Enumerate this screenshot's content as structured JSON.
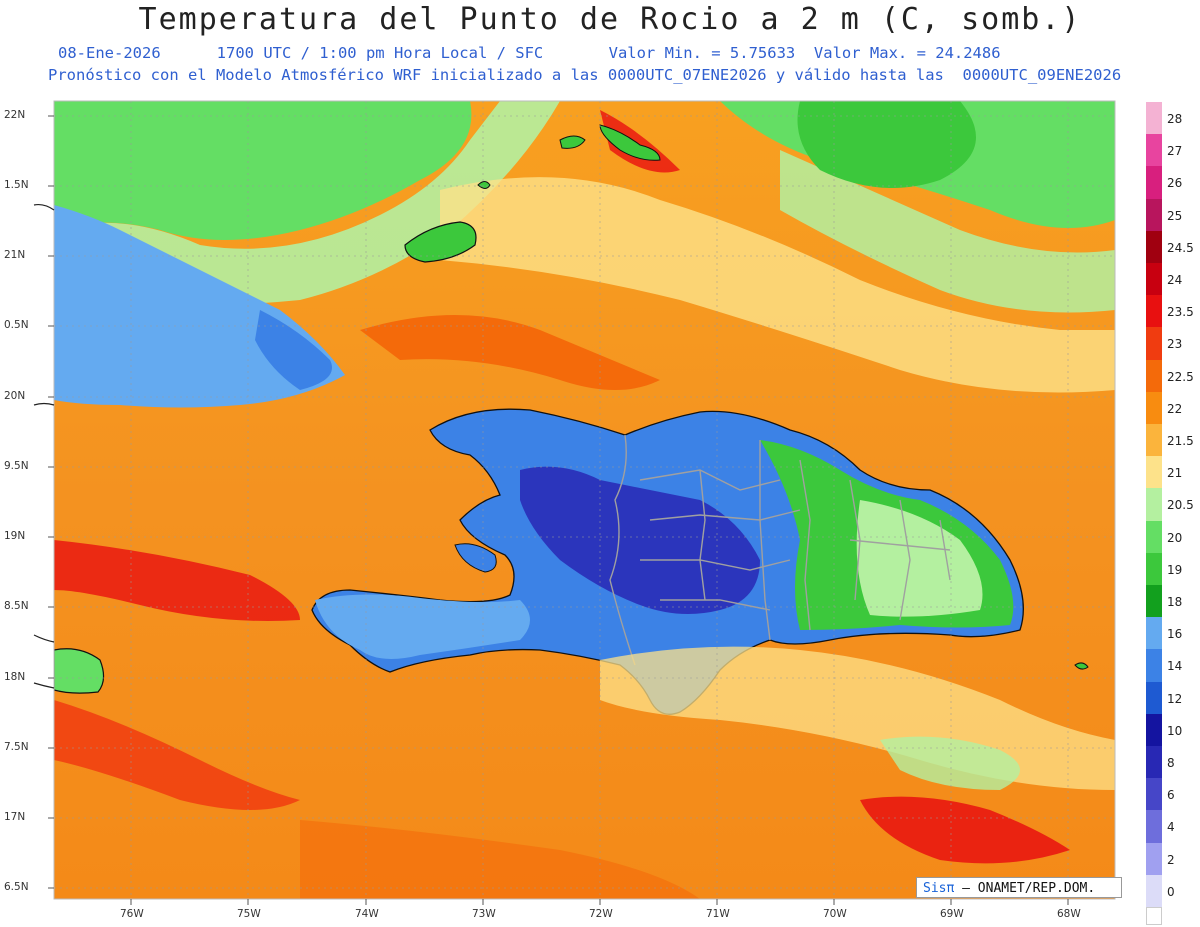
{
  "header": {
    "title": "Temperatura del Punto de Rocio a 2 m (C, somb.)",
    "date": "08-Ene-2026",
    "time": "1700 UTC / 1:00 pm Hora Local / SFC",
    "valmin": "Valor Min. = 5.75633",
    "valmax": "Valor Max. = 24.2486",
    "model_line": "Pronóstico con el Modelo Atmosférico WRF inicializado a las 0000UTC_07ENE2026 y válido hasta las  0000UTC_09ENE2026"
  },
  "colorbar": {
    "labels": [
      "28",
      "27",
      "26",
      "25",
      "24.5",
      "24",
      "23.5",
      "23",
      "22.5",
      "22",
      "21.5",
      "21",
      "20.5",
      "20",
      "19",
      "18",
      "16",
      "14",
      "12",
      "10",
      "8",
      "6",
      "4",
      "2",
      "0"
    ],
    "colors": [
      "#f4b2d3",
      "#e8449f",
      "#d81f7e",
      "#b8155d",
      "#a00010",
      "#c80010",
      "#e81010",
      "#f03c10",
      "#f46a0a",
      "#f88c10",
      "#fbb43c",
      "#fde28a",
      "#b4f0a0",
      "#64de64",
      "#3cc83c",
      "#12a01e",
      "#64aaf0",
      "#3c82e6",
      "#1e5ad2",
      "#1414a0",
      "#2828b4",
      "#4646c8",
      "#6e6edc",
      "#a0a0f0",
      "#dcdcf8"
    ],
    "bottom_color": "#ffffff"
  },
  "axes": {
    "lat_labels": [
      "22N",
      "1.5N",
      "21N",
      "0.5N",
      "20N",
      "9.5N",
      "19N",
      "8.5N",
      "18N",
      "7.5N",
      "17N",
      "6.5N"
    ],
    "lon_labels": [
      "76W",
      "75W",
      "74W",
      "73W",
      "72W",
      "71W",
      "70W",
      "69W",
      "68W"
    ]
  },
  "credit": {
    "sis": "Sisπ",
    "org": "– ONAMET/REP.DOM."
  }
}
